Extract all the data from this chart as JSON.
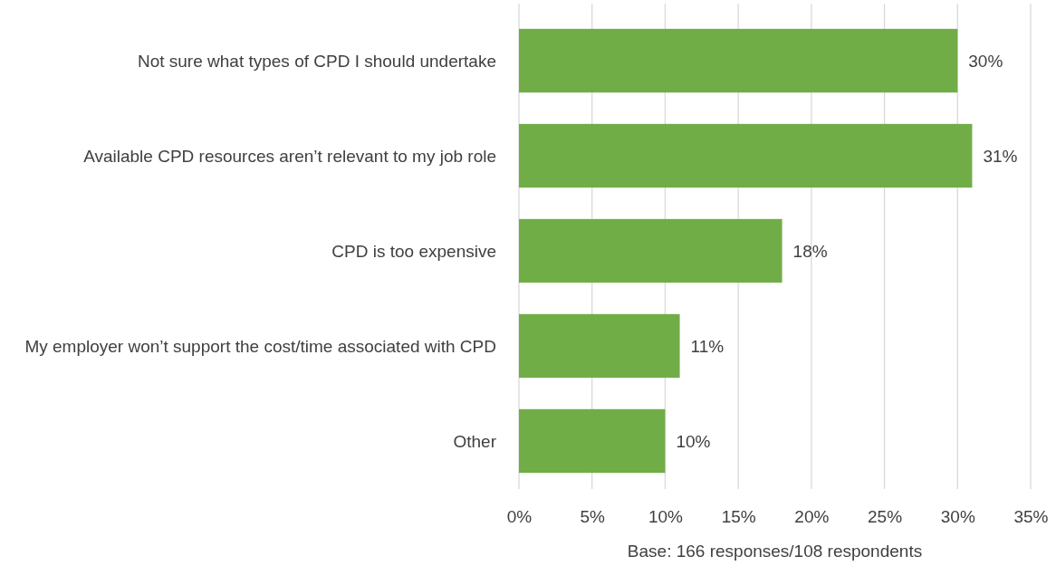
{
  "chart_data": {
    "type": "bar",
    "orientation": "horizontal",
    "categories": [
      "Not sure what types of CPD I should undertake",
      "Available CPD resources aren’t relevant to my job role",
      "CPD is too expensive",
      "My employer won’t support the cost/time associated with CPD",
      "Other"
    ],
    "values": [
      30,
      31,
      18,
      11,
      10
    ],
    "value_labels": [
      "30%",
      "31%",
      "18%",
      "11%",
      "10%"
    ],
    "color": "#70ad47",
    "xlim": [
      0,
      35
    ],
    "xticks": [
      {
        "value": 0,
        "label": "0%"
      },
      {
        "value": 5,
        "label": "5%"
      },
      {
        "value": 10,
        "label": "10%"
      },
      {
        "value": 15,
        "label": "15%"
      },
      {
        "value": 20,
        "label": "20%"
      },
      {
        "value": 25,
        "label": "25%"
      },
      {
        "value": 30,
        "label": "30%"
      },
      {
        "value": 35,
        "label": "35%"
      }
    ],
    "grid": "x",
    "xlabel": "Base: 166 responses/108 respondents"
  }
}
